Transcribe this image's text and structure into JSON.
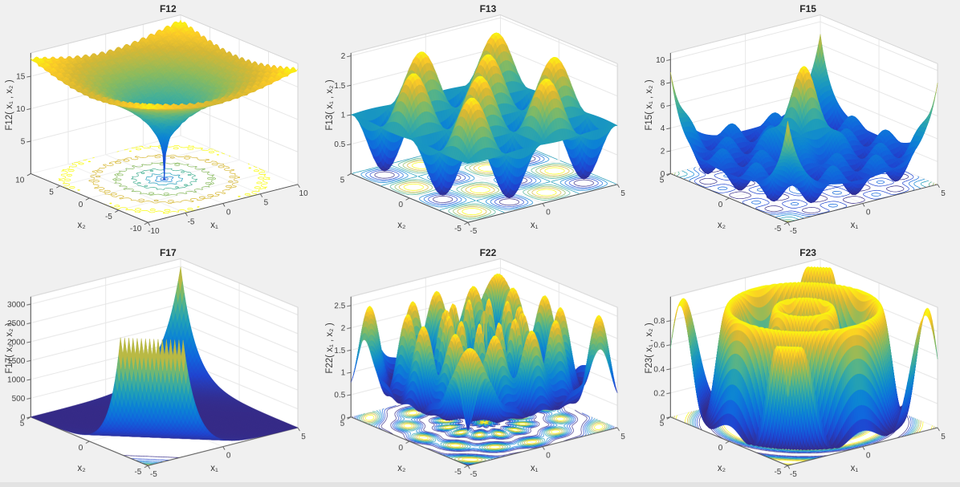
{
  "figure": {
    "background": "#f0f0f0",
    "axes_background": "#ffffff",
    "window_edge_color": "#e3e3e3",
    "tick_label_color": "#3f3f3f",
    "axis_line_color": "#4f4f4f",
    "grid_line_color": "#e7e7e7",
    "colormap": "parula",
    "colormap_stops": [
      [
        0.0,
        "#352a87"
      ],
      [
        0.125,
        "#1f44d0"
      ],
      [
        0.25,
        "#1067dd"
      ],
      [
        0.375,
        "#0c84d4"
      ],
      [
        0.5,
        "#1e9dba"
      ],
      [
        0.625,
        "#48b194"
      ],
      [
        0.75,
        "#89bb5f"
      ],
      [
        0.875,
        "#d7b834"
      ],
      [
        0.94,
        "#fcca27"
      ],
      [
        1.0,
        "#f9fb0e"
      ]
    ]
  },
  "chart_data": [
    {
      "type": "surface3d",
      "title": "F12",
      "xlabel": "x₁",
      "ylabel": "x₂",
      "zlabel": "F12( x₁ , x₂ )",
      "x_range": [
        -10,
        10
      ],
      "y_range": [
        -10,
        10
      ],
      "zlim": [
        0,
        18.6
      ],
      "x_ticks": [
        -10,
        -5,
        0,
        5,
        10
      ],
      "y_ticks": [
        -10,
        -5,
        0,
        5,
        10
      ],
      "z_ticks": [
        5,
        10,
        15
      ],
      "surface_formula": "6.9*Math.pow(x*x+y*y,0.175)+0.85*Math.abs(Math.sin(2.9*x)*Math.sin(2.9*y))",
      "grid_n": 104,
      "contour_grid": 120,
      "contour_count": 9,
      "description": "Steep central funnel to 0 at origin widening into a rippled bowl covered with small spikes; dense dotted contour rings on the floor plane."
    },
    {
      "type": "surface3d",
      "title": "F13",
      "xlabel": "x₁",
      "ylabel": "x₂",
      "zlabel": "F13( x₁ , x₂ )",
      "x_range": [
        -5,
        5
      ],
      "y_range": [
        -5,
        5
      ],
      "zlim": [
        0,
        2.05
      ],
      "x_ticks": [
        -5,
        0,
        5
      ],
      "y_ticks": [
        -5,
        0,
        5
      ],
      "z_ticks": [
        0.5,
        1,
        1.5,
        2
      ],
      "surface_formula": "1+0.93*Math.sin(1.26*x)*Math.sin(1.26*y)",
      "grid_n": 64,
      "contour_grid": 90,
      "contour_count": 9,
      "description": "Smooth egg-carton of broad sinusoidal peaks (≈2) and valleys (≈0.07) in a 2x2 pattern; oval contour rings on the floor."
    },
    {
      "type": "surface3d",
      "title": "F15",
      "xlabel": "x₁",
      "ylabel": "x₂",
      "zlabel": "F15( x₁ , x₂ )",
      "x_range": [
        -5,
        5
      ],
      "y_range": [
        -5,
        5
      ],
      "zlim": [
        0,
        10.6
      ],
      "x_ticks": [
        -5,
        0,
        5
      ],
      "y_ticks": [
        -5,
        0,
        5
      ],
      "z_ticks": [
        0,
        2,
        4,
        6,
        8,
        10
      ],
      "surface_formula": "6.5*Math.exp(-(x*x+y*y)/1.8)+1.9+1.5*Math.cos(2.2*x)*Math.cos(2.2*y)+7*Math.pow((x*x+y*y)/50,5)",
      "grid_n": 80,
      "contour_grid": 100,
      "contour_count": 9,
      "description": "Tall yellow central peak (≈10) surrounded by rings of smaller bumps, with sharp spikes (≈9) rising at the four corners."
    },
    {
      "type": "surface3d",
      "title": "F17",
      "xlabel": "x₁",
      "ylabel": "x₂",
      "zlabel": "F17( x₁ , x₂ )",
      "x_range": [
        -5,
        5
      ],
      "y_range": [
        -5,
        5
      ],
      "zlim": [
        0,
        3200
      ],
      "x_ticks": [
        -5,
        0,
        5
      ],
      "y_ticks": [
        -5,
        0,
        5
      ],
      "z_ticks": [
        0,
        500,
        1000,
        1500,
        2000,
        2500,
        3000
      ],
      "surface_formula": "Math.exp(0.8*(x+y))+Math.exp(-1.05*(x+y))",
      "grid_n": 64,
      "contour_grid": 140,
      "contour_levels": [
        4000,
        8000,
        12000,
        16000,
        20000,
        24000,
        28000,
        32000,
        36000
      ],
      "description": "Mostly flat dark-blue plain with an exponential peak (≈3000) at the back corner and a clipped steep spike near the front corner; straight diagonal contour lines packed near the front corner."
    },
    {
      "type": "surface3d",
      "title": "F22",
      "xlabel": "x₁",
      "ylabel": "x₂",
      "zlabel": "F22( x₁ , x₂ )",
      "x_range": [
        -5,
        5
      ],
      "y_range": [
        -5,
        5
      ],
      "zlim": [
        0,
        2.7
      ],
      "x_ticks": [
        -5,
        0,
        5
      ],
      "y_ticks": [
        -5,
        0,
        5
      ],
      "z_ticks": [
        0,
        0.5,
        1,
        1.5,
        2,
        2.5
      ],
      "surface_formula": "(function(){var r=Math.sqrt(x*x+y*y),t=Math.atan2(y,x);return Math.max(0.03,1.38+0.62*Math.cos(3.1*r)+0.5*Math.cos(12*t)*Math.cos(1.55*r));})()",
      "grid_n": 110,
      "contour_grid": 110,
      "contour_count": 9,
      "description": "Highly oscillatory concentric ring ridges (top ≈2.6) with radial spoke corrugations, tall wavy walls near the outer edges; dense colored contour rings on the floor."
    },
    {
      "type": "surface3d",
      "title": "F23",
      "xlabel": "x₁",
      "ylabel": "x₂",
      "zlabel": "F23( x₁ , x₂ )",
      "x_range": [
        -5,
        5
      ],
      "y_range": [
        -5,
        5
      ],
      "zlim": [
        0,
        1.0
      ],
      "x_ticks": [
        -5,
        0,
        5
      ],
      "y_ticks": [
        -5,
        0,
        5
      ],
      "z_ticks": [
        0,
        0.2,
        0.4,
        0.6,
        0.8
      ],
      "surface_formula": "0.5+0.46*Math.cos(2.51*(Math.sqrt(x*x+y*y)-1.5))",
      "grid_n": 90,
      "contour_grid": 110,
      "contour_count": 9,
      "description": "Smooth circular mesa (≈0.95) with an inner raised donut ring, a deep moat near the edges and small blue spikes at the corners; dense contour rings on the floor."
    }
  ]
}
